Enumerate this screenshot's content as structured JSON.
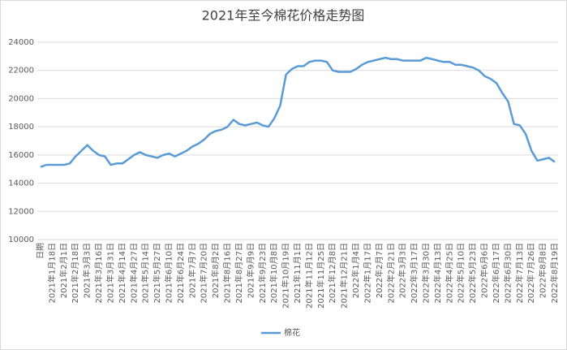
{
  "chart_data": {
    "type": "line",
    "title": "2021年至今棉花价格走势图",
    "categories": [
      "日期",
      null,
      "2021年1月18日",
      null,
      "2021年2月1日",
      null,
      "2021年2月18日",
      null,
      "2021年3月3日",
      null,
      "2021年3月16日",
      null,
      "2021年3月31日",
      null,
      "2021年4月14日",
      null,
      "2021年4月27日",
      null,
      "2021年5月14日",
      null,
      "2021年5月27日",
      null,
      "2021年6月10日",
      null,
      "2021年6月24日",
      null,
      "2021年7月7日",
      null,
      "2021年7月20日",
      null,
      "2021年8月2日",
      null,
      "2021年8月16日",
      null,
      "2021年8月27日",
      null,
      "2021年9月9日",
      null,
      "2021年9月23日",
      null,
      "2021年10月8日",
      null,
      "2021年10月19日",
      null,
      "2021年11月1日",
      null,
      "2021年11月12日",
      null,
      "2021年11月25日",
      null,
      "2021年12月8日",
      null,
      "2021年12月21日",
      null,
      "2022年1月4日",
      null,
      "2022年1月17日",
      null,
      "2022年2月7日",
      null,
      "2022年2月21日",
      null,
      "2022年3月3日",
      null,
      "2022年3月17日",
      null,
      "2022年3月30日",
      null,
      "2022年4月13日",
      null,
      "2022年4月25日",
      null,
      "2022年5月10日",
      null,
      "2022年5月23日",
      null,
      "2022年6月6日",
      null,
      "2022年6月17日",
      null,
      "2022年6月30日",
      null,
      "2022年7月13日",
      null,
      "2022年7月26日",
      null,
      "2022年8月8日",
      null,
      "2022年8月19日"
    ],
    "series": [
      {
        "name": "棉花",
        "color": "#5b9bd5",
        "values": [
          15150,
          15300,
          15300,
          15300,
          15300,
          15400,
          15900,
          16300,
          16700,
          16300,
          16000,
          15900,
          15300,
          15400,
          15400,
          15700,
          16000,
          16200,
          16000,
          15900,
          15800,
          16000,
          16100,
          15900,
          16100,
          16300,
          16600,
          16800,
          17100,
          17500,
          17700,
          17800,
          18000,
          18500,
          18200,
          18100,
          18200,
          18300,
          18100,
          18000,
          18600,
          19500,
          21700,
          22100,
          22300,
          22300,
          22600,
          22700,
          22700,
          22600,
          22000,
          21900,
          21900,
          21900,
          22100,
          22400,
          22600,
          22700,
          22800,
          22900,
          22800,
          22800,
          22700,
          22700,
          22700,
          22700,
          22900,
          22800,
          22700,
          22600,
          22600,
          22400,
          22400,
          22300,
          22200,
          22000,
          21600,
          21400,
          21100,
          20400,
          19800,
          18200,
          18100,
          17500,
          16300,
          15600,
          15700,
          15800,
          15500
        ]
      }
    ],
    "ylim": [
      10000,
      24000
    ],
    "yticks": [
      10000,
      12000,
      14000,
      16000,
      18000,
      20000,
      22000,
      24000
    ],
    "grid": true,
    "legend": "bottom"
  }
}
